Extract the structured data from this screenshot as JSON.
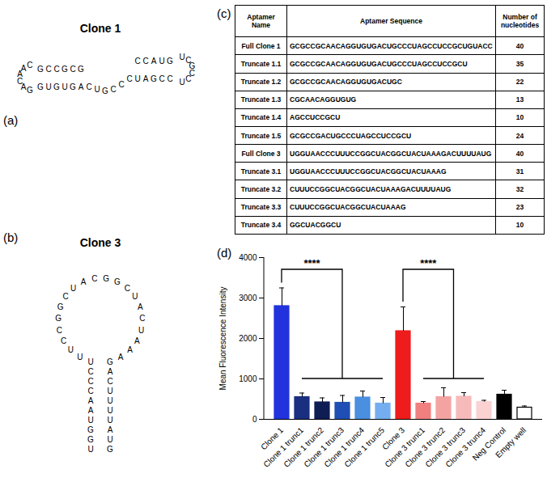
{
  "structures": [
    {
      "label": "(a)",
      "title": "Clone 1",
      "sequence": "GCGCCGCAACAGGUGUGACUGCCCUAGCCUCCGCUGUACC"
    },
    {
      "label": "(b)",
      "title": "Clone 3",
      "sequence": "UGGUAACCCUUUCCGGCUACGGCUACUAAAGACUUUUAUG"
    }
  ],
  "table": {
    "label": "(c)",
    "header": [
      "Aptamer Name",
      "Aptamer Sequence",
      "Number of nucleotides"
    ],
    "rows": [
      [
        "Full Clone 1",
        "GCGCCGCAACAGGUGUGACUGCCCUAGCCUCCGCUGUACC",
        40
      ],
      [
        "Truncate 1.1",
        "GCGCCGCAACAGGUGUGACUGCCCUAGCCUCCGCU",
        35
      ],
      [
        "Truncate 1.2",
        "GCGCCGCAACAGGUGUGACUGC",
        22
      ],
      [
        "Truncate 1.3",
        "CGCAACAGGUGUG",
        13
      ],
      [
        "Truncate 1.4",
        "AGCCUCCGCU",
        10
      ],
      [
        "Truncate 1.5",
        "GCGCCGACUGCCCUAGCCUCCGCU",
        24
      ],
      [
        "Full Clone 3",
        "UGGUAACCCUUUCCGGCUACGGCUACUAAAGACUUUUAUG",
        40
      ],
      [
        "Truncate 3.1",
        "UGGUAACCCUUUCCGGCUACGGCUACUAAAG",
        31
      ],
      [
        "Truncate 3.2",
        "CUUUCCGGCUACGGCUACUAAAGACUUUUAUG",
        32
      ],
      [
        "Truncate 3.3",
        "CUUUCCGGCUACGGCUACUAAAG",
        23
      ],
      [
        "Truncate 3.4",
        "GGCUACGGCU",
        10
      ]
    ]
  },
  "chart_label": "(d)",
  "chart_data": {
    "type": "bar",
    "ylabel": "Mean Fluorescence Intensity",
    "categories": [
      "Clone 1",
      "Clone 1 trunc1",
      "Clone 1 trunc2",
      "Clone 1 trunc3",
      "Clone 1 trunc4",
      "Clone 1 trunc5",
      "Clone 3",
      "Clone 3 trunc1",
      "Clone 3 trunc2",
      "Clone 3 trunc3",
      "Clone 3 trunc4",
      "Neg Control",
      "Empty well"
    ],
    "values": [
      2800,
      550,
      420,
      410,
      540,
      390,
      2180,
      390,
      550,
      560,
      430,
      610,
      290
    ],
    "errors": [
      450,
      100,
      110,
      180,
      160,
      150,
      600,
      50,
      230,
      100,
      40,
      110,
      40
    ],
    "colors": [
      "#2233dd",
      "#1a2f80",
      "#0f1d55",
      "#1f4fb5",
      "#4a8fe0",
      "#74aef0",
      "#ee1c1c",
      "#f08080",
      "#f4a3a3",
      "#f7baba",
      "#fbd2d2",
      "#000000",
      "#ffffff"
    ],
    "ylim": [
      0,
      4000
    ],
    "yticks": [
      0,
      1000,
      2000,
      3000,
      4000
    ],
    "grid": false,
    "annotations": [
      {
        "text": "****",
        "from": "Clone 1",
        "group": [
          "Clone 1 trunc1",
          "Clone 1 trunc5"
        ],
        "y": 3700,
        "y_low": 1000
      },
      {
        "text": "****",
        "from": "Clone 3",
        "group": [
          "Clone 3 trunc1",
          "Clone 3 trunc4"
        ],
        "y": 3700,
        "y_low": 1000
      }
    ]
  }
}
